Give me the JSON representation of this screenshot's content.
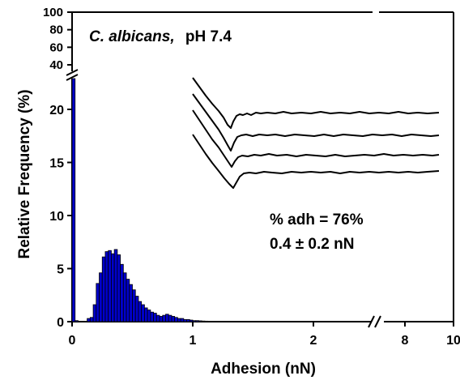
{
  "chart_data": {
    "type": "bar",
    "title_species": "C. albicans,",
    "title_condition": "pH 7.4",
    "xlabel": "Adhesion (nN)",
    "ylabel": "Relative Frequency (%)",
    "x_ticks": [
      "0",
      "1",
      "2",
      "8",
      "10"
    ],
    "y_ticks_lower": [
      "0",
      "5",
      "10",
      "15",
      "20"
    ],
    "y_ticks_upper": [
      "40",
      "60",
      "80",
      "100"
    ],
    "xlim_segment1": [
      0,
      2.8
    ],
    "xlim_segment2": [
      7,
      10
    ],
    "ylim_lower": [
      0,
      23
    ],
    "ylim_upper": [
      35,
      100
    ],
    "bin_width": 0.025,
    "bins": [
      0.0,
      0.025,
      0.05,
      0.075,
      0.1,
      0.125,
      0.15,
      0.175,
      0.2,
      0.225,
      0.25,
      0.275,
      0.3,
      0.325,
      0.35,
      0.375,
      0.4,
      0.425,
      0.45,
      0.475,
      0.5,
      0.525,
      0.55,
      0.575,
      0.6,
      0.625,
      0.65,
      0.675,
      0.7,
      0.725,
      0.75,
      0.775,
      0.8,
      0.825,
      0.85,
      0.875,
      0.9,
      0.925,
      0.95,
      0.975,
      1.0,
      1.025,
      1.05,
      1.075,
      1.1,
      1.125,
      1.15,
      1.175,
      1.2,
      1.225,
      1.25,
      1.275,
      1.3
    ],
    "values": [
      24,
      0.1,
      0,
      0,
      0,
      0.3,
      0.4,
      1.6,
      3.6,
      4.6,
      6.1,
      6.6,
      6.7,
      6.4,
      6.8,
      6.3,
      5.4,
      4.6,
      4.0,
      3.5,
      3.0,
      2.4,
      1.9,
      1.6,
      1.3,
      1.1,
      0.9,
      0.8,
      0.6,
      0.5,
      0.6,
      0.7,
      0.6,
      0.5,
      0.4,
      0.3,
      0.3,
      0.2,
      0.2,
      0.15,
      0.1,
      0.1,
      0.08,
      0.06,
      0.05,
      0.04,
      0.03,
      0.02,
      0.02,
      0.02,
      0.01,
      0.01,
      0.01
    ],
    "bar_color": "#0000cc",
    "annotations": {
      "percent_adhesion": "% adh = 76%",
      "mean_adhesion": "0.4 ± 0.2 nN"
    },
    "inset": "four representative force-distance retraction curves"
  }
}
